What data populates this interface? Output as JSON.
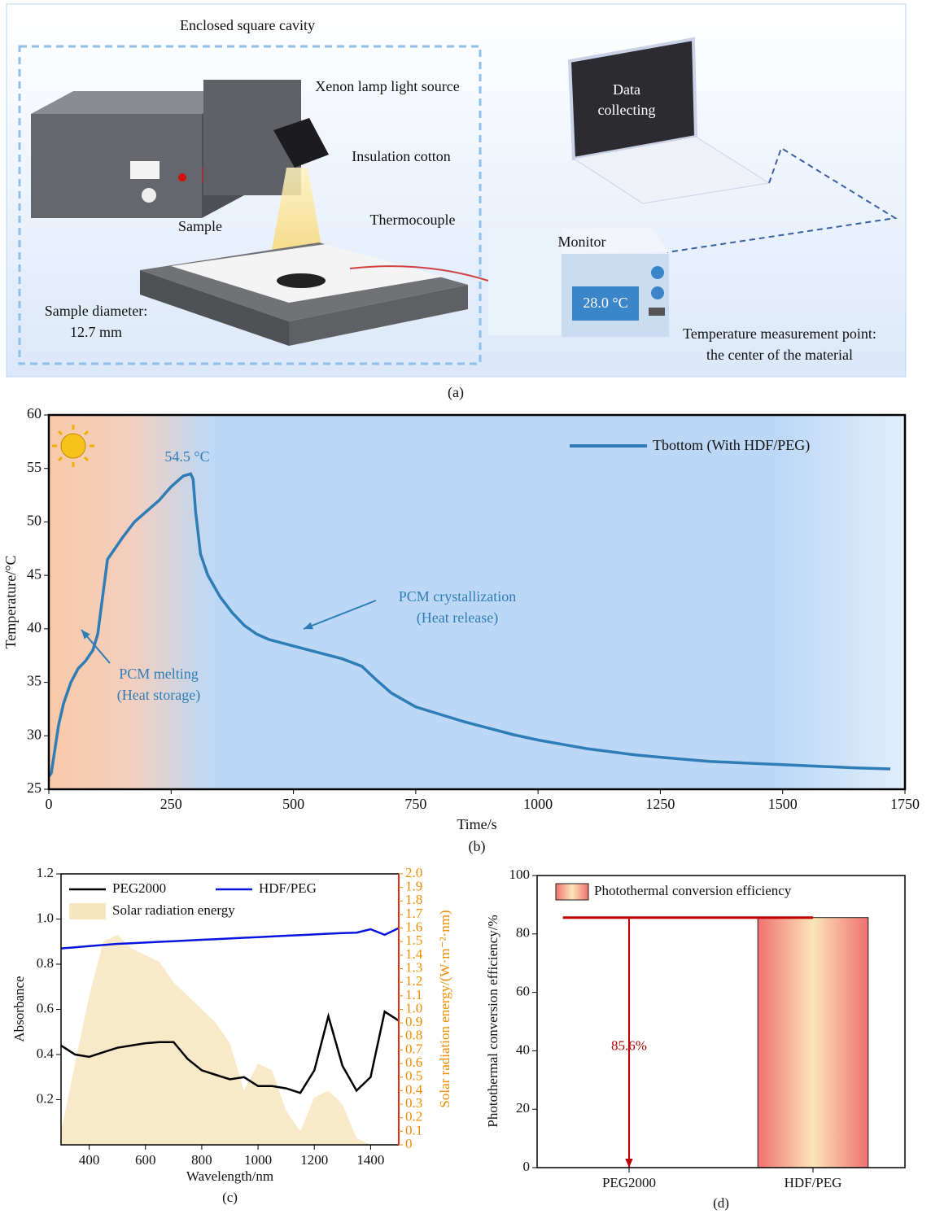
{
  "diagram": {
    "cavity_label": "Enclosed square cavity",
    "lamp_label": "Xenon lamp light source",
    "insulation_label": "Insulation cotton",
    "thermocouple_label": "Thermocouple",
    "sample_label": "Sample",
    "diameter_label": [
      "Sample diameter:",
      "12.7 mm"
    ],
    "laptop_label": [
      "Data",
      "collecting"
    ],
    "monitor_label": "Monitor",
    "monitor_reading": "28.0 °C",
    "point_label": [
      "Temperature measurement point:",
      "the center of the material"
    ],
    "caption": "(a)"
  },
  "chart_data": [
    {
      "type": "line",
      "caption": "(b)",
      "xlabel": "Time/s",
      "ylabel": "Temperature/°C",
      "xlim": [
        0,
        1750
      ],
      "ylim": [
        25,
        60
      ],
      "xticks": [
        0,
        250,
        500,
        750,
        1000,
        1250,
        1500,
        1750
      ],
      "yticks": [
        25,
        30,
        35,
        40,
        45,
        50,
        55,
        60
      ],
      "legend": "upper right",
      "x": [
        0,
        5,
        10,
        20,
        30,
        45,
        60,
        75,
        90,
        100,
        110,
        120,
        135,
        150,
        175,
        200,
        225,
        250,
        275,
        290,
        295,
        300,
        310,
        325,
        350,
        375,
        400,
        425,
        450,
        475,
        500,
        550,
        600,
        640,
        670,
        700,
        750,
        800,
        850,
        900,
        950,
        1000,
        1050,
        1100,
        1150,
        1200,
        1250,
        1300,
        1350,
        1400,
        1450,
        1500,
        1550,
        1600,
        1650,
        1720
      ],
      "series": [
        {
          "name": "Tbottom (With HDF/PEG)",
          "color": "#2f7db6",
          "values": [
            26.2,
            26.5,
            28,
            31,
            33,
            35,
            36.3,
            37,
            38,
            39.5,
            43,
            46.5,
            47.5,
            48.5,
            50,
            51,
            52,
            53.3,
            54.3,
            54.5,
            54,
            51,
            47,
            45,
            43,
            41.5,
            40.3,
            39.5,
            39,
            38.7,
            38.4,
            37.8,
            37.2,
            36.5,
            35.2,
            34,
            32.7,
            32,
            31.3,
            30.7,
            30.1,
            29.6,
            29.2,
            28.8,
            28.5,
            28.2,
            28,
            27.8,
            27.6,
            27.5,
            27.4,
            27.3,
            27.2,
            27.1,
            27,
            26.9
          ]
        }
      ],
      "annotations": [
        "54.5 °C",
        "PCM melting",
        "(Heat storage)",
        "PCM crystallization",
        "(Heat release)"
      ]
    },
    {
      "type": "line",
      "caption": "(c)",
      "xlabel": "Wavelength/nm",
      "ylabel": "Absorbance",
      "y2label": "Solar radiation energy/(W·m⁻²·nm)",
      "xlim": [
        300,
        1500
      ],
      "ylim": [
        0,
        1.2
      ],
      "y2lim": [
        0,
        2
      ],
      "xticks": [
        400,
        600,
        800,
        1000,
        1200,
        1400
      ],
      "yticks": [
        0.2,
        0.4,
        0.6,
        0.8,
        {
          "value": 1,
          "label": "1.0"
        },
        1.2
      ],
      "y2ticks": [
        0,
        0.1,
        0.2,
        0.3,
        0.4,
        0.5,
        0.6,
        0.7,
        0.8,
        0.9,
        {
          "value": 1,
          "label": "1.0"
        },
        1.1,
        1.2,
        1.3,
        1.4,
        1.5,
        1.6,
        1.7,
        1.8,
        1.9,
        {
          "value": 2,
          "label": "2.0"
        }
      ],
      "y2color": "#f08c00",
      "x": [
        300,
        350,
        400,
        450,
        500,
        550,
        600,
        650,
        700,
        750,
        800,
        850,
        900,
        950,
        1000,
        1050,
        1100,
        1150,
        1200,
        1250,
        1300,
        1350,
        1400,
        1450,
        1500
      ],
      "series": [
        {
          "name": "PEG2000",
          "color": "#000000",
          "values": [
            0.44,
            0.4,
            0.39,
            0.41,
            0.43,
            0.44,
            0.45,
            0.455,
            0.455,
            0.38,
            0.33,
            0.31,
            0.29,
            0.3,
            0.26,
            0.26,
            0.25,
            0.23,
            0.33,
            0.57,
            0.35,
            0.24,
            0.3,
            0.59,
            0.55
          ]
        },
        {
          "name": "HDF/PEG",
          "color": "#0a14e0",
          "values": [
            0.87,
            0.875,
            0.88,
            0.885,
            0.89,
            0.893,
            0.896,
            0.899,
            0.902,
            0.905,
            0.908,
            0.911,
            0.914,
            0.917,
            0.92,
            0.923,
            0.926,
            0.929,
            0.932,
            0.935,
            0.938,
            0.94,
            0.955,
            0.93,
            0.96
          ]
        },
        {
          "name": "Solar radiation energy",
          "color": "#f7e6c0",
          "axis": "y2",
          "type": "area",
          "values": [
            0.1,
            0.6,
            1.1,
            1.5,
            1.55,
            1.45,
            1.4,
            1.35,
            1.2,
            1.1,
            1,
            0.9,
            0.75,
            0.4,
            0.6,
            0.55,
            0.25,
            0.1,
            0.35,
            0.4,
            0.3,
            0.05,
            0,
            0,
            0
          ]
        }
      ]
    },
    {
      "type": "bar",
      "caption": "(d)",
      "ylabel": "Photothermal conversion efficiency/%",
      "ylim": [
        0,
        100
      ],
      "yticks": [
        0,
        20,
        40,
        60,
        80,
        100
      ],
      "categories": [
        "PEG2000",
        "HDF/PEG"
      ],
      "series": [
        {
          "name": "Photothermal conversion efficiency",
          "color": "#f07070",
          "values": [
            null,
            85.6
          ],
          "value_labels": [
            null,
            "85.6%"
          ]
        }
      ]
    }
  ]
}
